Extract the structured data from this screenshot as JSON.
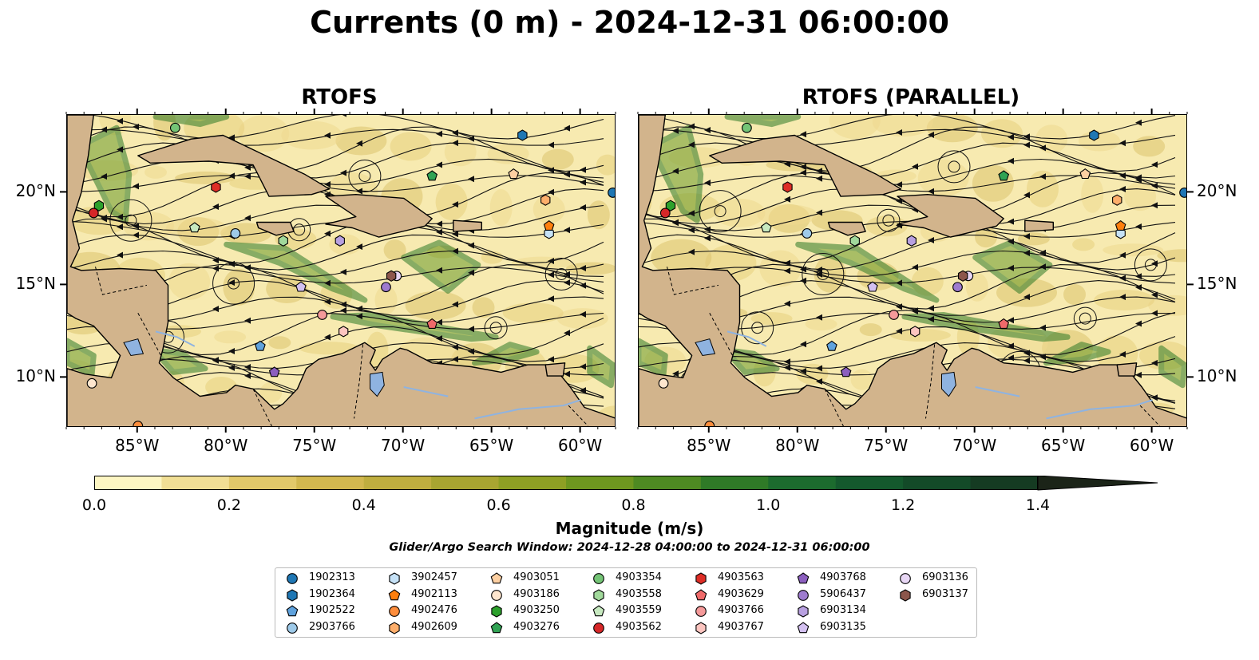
{
  "figure": {
    "title": "Currents (0 m) - 2024-12-31 06:00:00",
    "panels": [
      {
        "title": "RTOFS"
      },
      {
        "title": "RTOFS (PARALLEL)"
      }
    ],
    "lon_ticks": [
      "85°W",
      "80°W",
      "75°W",
      "70°W",
      "65°W",
      "60°W"
    ],
    "lat_ticks": [
      "20°N",
      "15°N",
      "10°N"
    ],
    "extent": {
      "lon": [
        -89,
        -58
      ],
      "lat": [
        7.3,
        24.2
      ]
    },
    "land_color": "#d2b48c",
    "water_color": "#8fb3e0"
  },
  "colorbar": {
    "label": "Magnitude (m/s)",
    "ticks": [
      "0.0",
      "0.2",
      "0.4",
      "0.6",
      "0.8",
      "1.0",
      "1.2",
      "1.4"
    ],
    "range": [
      0,
      1.5
    ],
    "extend": "max",
    "colors": [
      "#fdf6c3",
      "#f1df95",
      "#e2c96a",
      "#d2b84f",
      "#bfae3f",
      "#a8a531",
      "#8ea024",
      "#6e971f",
      "#4e8a22",
      "#2f7a27",
      "#1c6b2e",
      "#14592d",
      "#134a28",
      "#153b22",
      "#182e1c",
      "#1b2418"
    ]
  },
  "search_window": "Glider/Argo Search Window: 2024-12-28 04:00:00 to 2024-12-31 06:00:00",
  "legend": [
    {
      "id": "1902313",
      "color": "#1f77b4",
      "marker": "circle"
    },
    {
      "id": "1902364",
      "color": "#1f77b4",
      "marker": "hexagon"
    },
    {
      "id": "1902522",
      "color": "#5fa2dd",
      "marker": "pentagon"
    },
    {
      "id": "2903766",
      "color": "#9ecae9",
      "marker": "circle"
    },
    {
      "id": "3902457",
      "color": "#c6e2f7",
      "marker": "hexagon"
    },
    {
      "id": "4902113",
      "color": "#ff7f0e",
      "marker": "pentagon"
    },
    {
      "id": "4902476",
      "color": "#fd8d3c",
      "marker": "circle"
    },
    {
      "id": "4902609",
      "color": "#fdae6b",
      "marker": "hexagon"
    },
    {
      "id": "4903051",
      "color": "#fdd0a2",
      "marker": "pentagon"
    },
    {
      "id": "4903186",
      "color": "#fee6ce",
      "marker": "circle"
    },
    {
      "id": "4903250",
      "color": "#2ca02c",
      "marker": "hexagon"
    },
    {
      "id": "4903276",
      "color": "#31a354",
      "marker": "pentagon"
    },
    {
      "id": "4903354",
      "color": "#74c476",
      "marker": "circle"
    },
    {
      "id": "4903558",
      "color": "#a1d99b",
      "marker": "hexagon"
    },
    {
      "id": "4903559",
      "color": "#c7e9c0",
      "marker": "pentagon"
    },
    {
      "id": "4903562",
      "color": "#d62728",
      "marker": "circle"
    },
    {
      "id": "4903563",
      "color": "#de2d26",
      "marker": "hexagon"
    },
    {
      "id": "4903629",
      "color": "#ef6a6a",
      "marker": "pentagon"
    },
    {
      "id": "4903766",
      "color": "#f59a9a",
      "marker": "circle"
    },
    {
      "id": "4903767",
      "color": "#fcc5c0",
      "marker": "hexagon"
    },
    {
      "id": "4903768",
      "color": "#8c5fbf",
      "marker": "pentagon"
    },
    {
      "id": "5906437",
      "color": "#9e7bcf",
      "marker": "circle"
    },
    {
      "id": "6903134",
      "color": "#b8a0e0",
      "marker": "hexagon"
    },
    {
      "id": "6903135",
      "color": "#d3c0f0",
      "marker": "pentagon"
    },
    {
      "id": "6903136",
      "color": "#e8d7f5",
      "marker": "circle"
    },
    {
      "id": "6903137",
      "color": "#8c564b",
      "marker": "hexagon"
    }
  ],
  "floats": [
    {
      "id": "1902313",
      "lon": -58.2,
      "lat": 20.0
    },
    {
      "id": "1902364",
      "lon": -63.3,
      "lat": 23.1
    },
    {
      "id": "1902522",
      "lon": -78.1,
      "lat": 11.7
    },
    {
      "id": "2903766",
      "lon": -79.5,
      "lat": 17.8
    },
    {
      "id": "3902457",
      "lon": -61.8,
      "lat": 17.8
    },
    {
      "id": "4902113",
      "lon": -61.8,
      "lat": 18.2
    },
    {
      "id": "4902476",
      "lon": -85.0,
      "lat": 7.4
    },
    {
      "id": "4902609",
      "lon": -62.0,
      "lat": 19.6
    },
    {
      "id": "4903051",
      "lon": -63.8,
      "lat": 21.0
    },
    {
      "id": "4903186",
      "lon": -87.6,
      "lat": 9.7
    },
    {
      "id": "4903250",
      "lon": -87.2,
      "lat": 19.3
    },
    {
      "id": "4903276",
      "lon": -68.4,
      "lat": 20.9
    },
    {
      "id": "4903354",
      "lon": -82.9,
      "lat": 23.5
    },
    {
      "id": "4903558",
      "lon": -76.8,
      "lat": 17.4
    },
    {
      "id": "4903559",
      "lon": -81.8,
      "lat": 18.1
    },
    {
      "id": "4903562",
      "lon": -87.5,
      "lat": 18.9
    },
    {
      "id": "4903563",
      "lon": -80.6,
      "lat": 20.3
    },
    {
      "id": "4903629",
      "lon": -68.4,
      "lat": 12.9
    },
    {
      "id": "4903766",
      "lon": -74.6,
      "lat": 13.4
    },
    {
      "id": "4903767",
      "lon": -73.4,
      "lat": 12.5
    },
    {
      "id": "4903768",
      "lon": -77.3,
      "lat": 10.3
    },
    {
      "id": "5906437",
      "lon": -71.0,
      "lat": 14.9
    },
    {
      "id": "6903134",
      "lon": -73.6,
      "lat": 17.4
    },
    {
      "id": "6903135",
      "lon": -75.8,
      "lat": 14.9
    },
    {
      "id": "6903136",
      "lon": -70.4,
      "lat": 15.5
    },
    {
      "id": "6903137",
      "lon": -70.7,
      "lat": 15.5
    }
  ]
}
